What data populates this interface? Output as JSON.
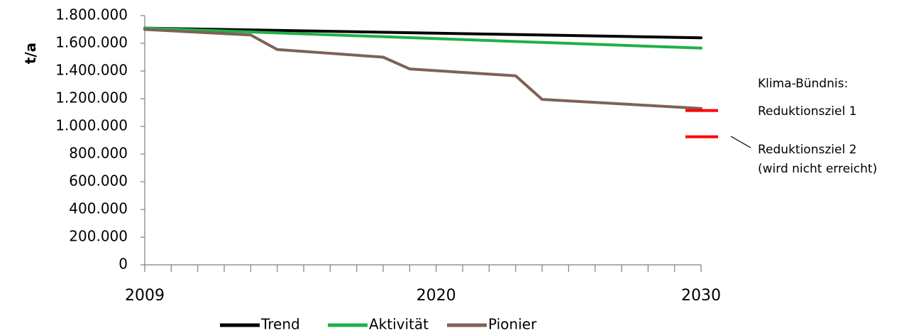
{
  "chart_data": {
    "type": "line",
    "ylabel": "t/a",
    "xlabel": "",
    "ylim": [
      0,
      1800000
    ],
    "xlim": [
      2009,
      2030
    ],
    "y_ticks": [
      0,
      200000,
      400000,
      600000,
      800000,
      1000000,
      1200000,
      1400000,
      1600000,
      1800000
    ],
    "y_tick_labels": [
      "0",
      "200.000",
      "400.000",
      "600.000",
      "800.000",
      "1.000.000",
      "1.200.000",
      "1.400.000",
      "1.600.000",
      "1.800.000"
    ],
    "x_tick_labels": [
      {
        "x": 2009,
        "label": "2009"
      },
      {
        "x": 2020,
        "label": "2020"
      },
      {
        "x": 2030,
        "label": "2030"
      }
    ],
    "x_minor_ticks": [
      2009,
      2010,
      2011,
      2012,
      2013,
      2014,
      2015,
      2016,
      2017,
      2018,
      2019,
      2020,
      2021,
      2022,
      2023,
      2024,
      2025,
      2026,
      2027,
      2028,
      2029,
      2030
    ],
    "grid": false,
    "legend_position": "bottom",
    "series": [
      {
        "name": "Trend",
        "color": "#000000",
        "x": [
          2009,
          2030
        ],
        "values": [
          1710000,
          1640000
        ]
      },
      {
        "name": "Aktivität",
        "color": "#1fb04a",
        "x": [
          2009,
          2030
        ],
        "values": [
          1710000,
          1565000
        ]
      },
      {
        "name": "Pionier",
        "color": "#7d6256",
        "x": [
          2009,
          2013,
          2014,
          2018,
          2019,
          2023,
          2024,
          2030
        ],
        "values": [
          1700000,
          1660000,
          1555000,
          1500000,
          1415000,
          1365000,
          1195000,
          1130000
        ]
      }
    ],
    "targets": [
      {
        "label": "Reduktionsziel 1",
        "value": 1115000,
        "x": 2030,
        "color": "#ff0000"
      },
      {
        "label": "Reduktionsziel 2",
        "value": 925000,
        "x": 2030,
        "color": "#ff0000"
      }
    ],
    "annotations": {
      "heading": "Klima-Bündnis:",
      "target1_label": "Reduktionsziel 1",
      "target2_label": "Reduktionsziel 2",
      "target2_note": "(wird nicht erreicht)"
    }
  }
}
